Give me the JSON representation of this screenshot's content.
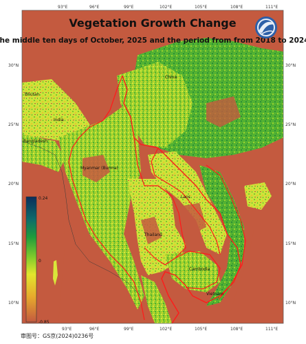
{
  "title": "Vegetation Growth Change",
  "subtitle": "the middle ten days of October, 2025 and the period from from 2018 to 2024",
  "approval_number": "审图号：GS京(2024)0236号",
  "colors": {
    "background_land": "#c45a3f",
    "ocean": "#9ecae8",
    "low_change": "#d9e63a",
    "mid_change": "#7ec72d",
    "high_change": "#2a9a3a",
    "border": "#ff1a1a"
  },
  "axes": {
    "lon_ticks": [
      "93°E",
      "96°E",
      "99°E",
      "102°E",
      "105°E",
      "108°E",
      "111°E"
    ],
    "lat_ticks": [
      "30°N",
      "25°N",
      "20°N",
      "15°N",
      "10°N"
    ]
  },
  "countries": [
    {
      "id": "bhutan",
      "label": "Bhutan"
    },
    {
      "id": "india",
      "label": "India"
    },
    {
      "id": "bangladesh",
      "label": "Bangladesh"
    },
    {
      "id": "china",
      "label": "China"
    },
    {
      "id": "myanmar",
      "label": "Myanmar (Burma)"
    },
    {
      "id": "laos",
      "label": "Laos"
    },
    {
      "id": "thailand",
      "label": "Thailand"
    },
    {
      "id": "cambodia",
      "label": "Cambodia"
    },
    {
      "id": "vietnam",
      "label": "Vietnam"
    }
  ],
  "colorbar": {
    "max_label": "0.24",
    "mid_label": "0",
    "min_label": "-0.85",
    "stops": [
      "#0b2d5b",
      "#0f6b6b",
      "#1f9b3c",
      "#7fca2c",
      "#e3e62c",
      "#e7a92c",
      "#c45a3f"
    ]
  }
}
